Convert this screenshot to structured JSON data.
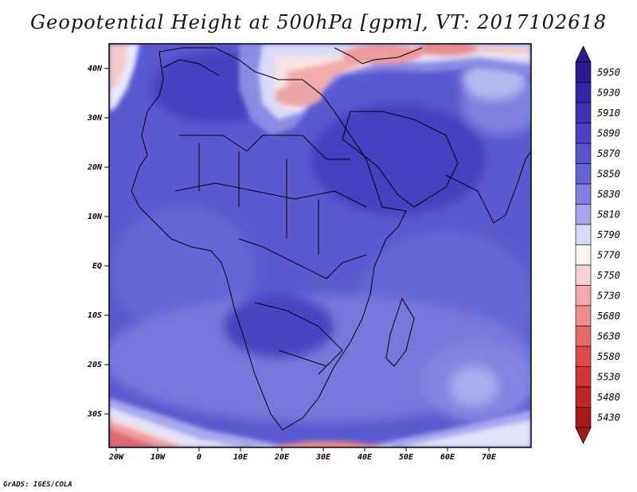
{
  "title": "Geopotential Height at 500hPa [gpm], VT: 2017102618",
  "credit": "GrADS: IGES/COLA",
  "map": {
    "region": "Africa and Middle East",
    "field": "Geopotential Height at 500hPa",
    "units": "gpm",
    "valid_time": "2017102618",
    "lat_labels": [
      "40N",
      "30N",
      "20N",
      "10N",
      "EQ",
      "10S",
      "20S",
      "30S"
    ],
    "lon_labels": [
      "20W",
      "10W",
      "0",
      "10E",
      "20E",
      "30E",
      "40E",
      "50E",
      "60E",
      "70E"
    ]
  },
  "colorbar": {
    "levels": [
      "5950",
      "5930",
      "5910",
      "5890",
      "5870",
      "5850",
      "5830",
      "5810",
      "5790",
      "5770",
      "5750",
      "5730",
      "5680",
      "5630",
      "5580",
      "5530",
      "5480",
      "5430"
    ],
    "colors": [
      "#2a1a8c",
      "#3326a6",
      "#3e33b5",
      "#4a42c2",
      "#5653cc",
      "#6564d6",
      "#7e7fe0",
      "#a4a6ee",
      "#d6d9f8",
      "#fbf2f2",
      "#f7d1d1",
      "#f1a9a9",
      "#ec8c8c",
      "#e66c6c",
      "#de4a4a",
      "#d03434",
      "#bf2626",
      "#a81a1a"
    ]
  }
}
